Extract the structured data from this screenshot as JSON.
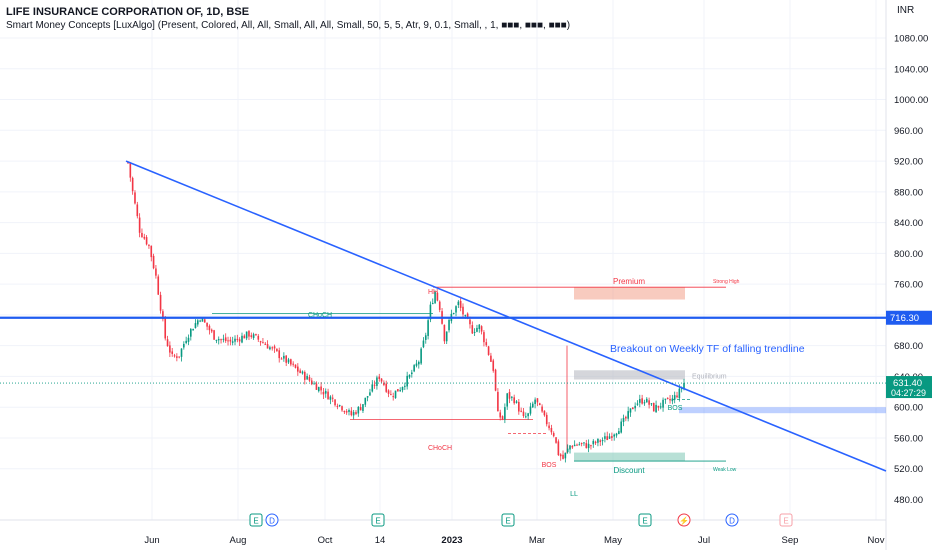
{
  "header": {
    "title": "LIFE INSURANCE CORPORATION OF, 1D, BSE",
    "indicator": "Smart Money Concepts [LuxAlgo] (Present, Colored, All, All, Small, All, All, Small, 50, 5, 5, Atr, 9, 0.1, Small, , 1, ■■■, ■■■, ■■■)",
    "currency": "INR"
  },
  "colors": {
    "up": "#089981",
    "down": "#f23645",
    "trendline": "#2962ff",
    "premium": "#f2a08a",
    "equilibrium": "#b2b5be",
    "discount": "#7ec7b5",
    "resistance": "#1f5cf0"
  },
  "chart_data": {
    "type": "candlestick",
    "ylim": [
      480,
      1120
    ],
    "y_ticks": [
      "1080.00",
      "1040.00",
      "1000.00",
      "960.00",
      "920.00",
      "880.00",
      "840.00",
      "800.00",
      "760.00",
      "720.00",
      "680.00",
      "640.00",
      "600.00",
      "560.00",
      "520.00",
      "480.00"
    ],
    "x_ticks": [
      "Jun",
      "Aug",
      "Oct",
      "14",
      "2023",
      "Mar",
      "May",
      "Jul",
      "Sep",
      "Nov"
    ],
    "price_path": [
      [
        0,
        918
      ],
      [
        2,
        880
      ],
      [
        5,
        830
      ],
      [
        9,
        810
      ],
      [
        12,
        770
      ],
      [
        14,
        730
      ],
      [
        16,
        690
      ],
      [
        19,
        665
      ],
      [
        22,
        668
      ],
      [
        25,
        690
      ],
      [
        28,
        705
      ],
      [
        31,
        717
      ],
      [
        34,
        705
      ],
      [
        37,
        692
      ],
      [
        40,
        688
      ],
      [
        44,
        685
      ],
      [
        48,
        690
      ],
      [
        52,
        695
      ],
      [
        56,
        688
      ],
      [
        60,
        680
      ],
      [
        64,
        670
      ],
      [
        68,
        660
      ],
      [
        72,
        650
      ],
      [
        76,
        640
      ],
      [
        80,
        630
      ],
      [
        84,
        620
      ],
      [
        88,
        610
      ],
      [
        92,
        600
      ],
      [
        96,
        590
      ],
      [
        100,
        600
      ],
      [
        104,
        620
      ],
      [
        108,
        640
      ],
      [
        110,
        630
      ],
      [
        113,
        615
      ],
      [
        117,
        625
      ],
      [
        121,
        640
      ],
      [
        125,
        660
      ],
      [
        128,
        695
      ],
      [
        130,
        730
      ],
      [
        132,
        750
      ],
      [
        134,
        730
      ],
      [
        136,
        690
      ],
      [
        139,
        720
      ],
      [
        142,
        735
      ],
      [
        145,
        715
      ],
      [
        148,
        700
      ],
      [
        151,
        705
      ],
      [
        154,
        680
      ],
      [
        157,
        650
      ],
      [
        159,
        590
      ],
      [
        161,
        585
      ],
      [
        163,
        615
      ],
      [
        166,
        610
      ],
      [
        168,
        598
      ],
      [
        170,
        585
      ],
      [
        172,
        590
      ],
      [
        175,
        610
      ],
      [
        177,
        598
      ],
      [
        179,
        585
      ],
      [
        181,
        575
      ],
      [
        183,
        565
      ],
      [
        185,
        540
      ],
      [
        187,
        533
      ],
      [
        190,
        550
      ],
      [
        194,
        552
      ],
      [
        198,
        550
      ],
      [
        202,
        555
      ],
      [
        206,
        560
      ],
      [
        210,
        570
      ],
      [
        214,
        585
      ],
      [
        218,
        605
      ],
      [
        222,
        610
      ],
      [
        226,
        598
      ],
      [
        230,
        605
      ],
      [
        234,
        610
      ],
      [
        237,
        620
      ],
      [
        239,
        631.4
      ]
    ],
    "last_price": "631.40",
    "countdown": "04:27:29",
    "levels": [
      {
        "label": "716.30",
        "value": 716.3
      }
    ],
    "trendline": {
      "from": [
        0,
        920
      ],
      "to": [
        350,
        517
      ]
    },
    "zones": [
      {
        "name": "Premium",
        "label": "Premium",
        "value_top": 756,
        "value_bottom": 740,
        "note": "Strong High"
      },
      {
        "name": "Equilibrium",
        "label": "Equilibrium",
        "value_top": 648,
        "value_bottom": 636
      },
      {
        "name": "Discount",
        "label": "Discount",
        "value_top": 541,
        "value_bottom": 530,
        "note": "Weak Low"
      }
    ],
    "annotations": [
      {
        "text": "HH",
        "x": 131,
        "y": 760
      },
      {
        "text": "CHoCH",
        "x": 60,
        "y": 722
      },
      {
        "text": "CHoCH",
        "x": 130,
        "y": 568
      },
      {
        "text": "BOS",
        "x": 184,
        "y": 555
      },
      {
        "text": "BOS",
        "x": 230,
        "y": 617
      },
      {
        "text": "LL",
        "x": 187,
        "y": 520
      }
    ],
    "callout": "Breakout on Weekly TF of falling trendline"
  },
  "event_badges": [
    "E",
    "D",
    "E",
    "E",
    "E",
    "E",
    "⚡",
    "E",
    "D",
    "E"
  ]
}
